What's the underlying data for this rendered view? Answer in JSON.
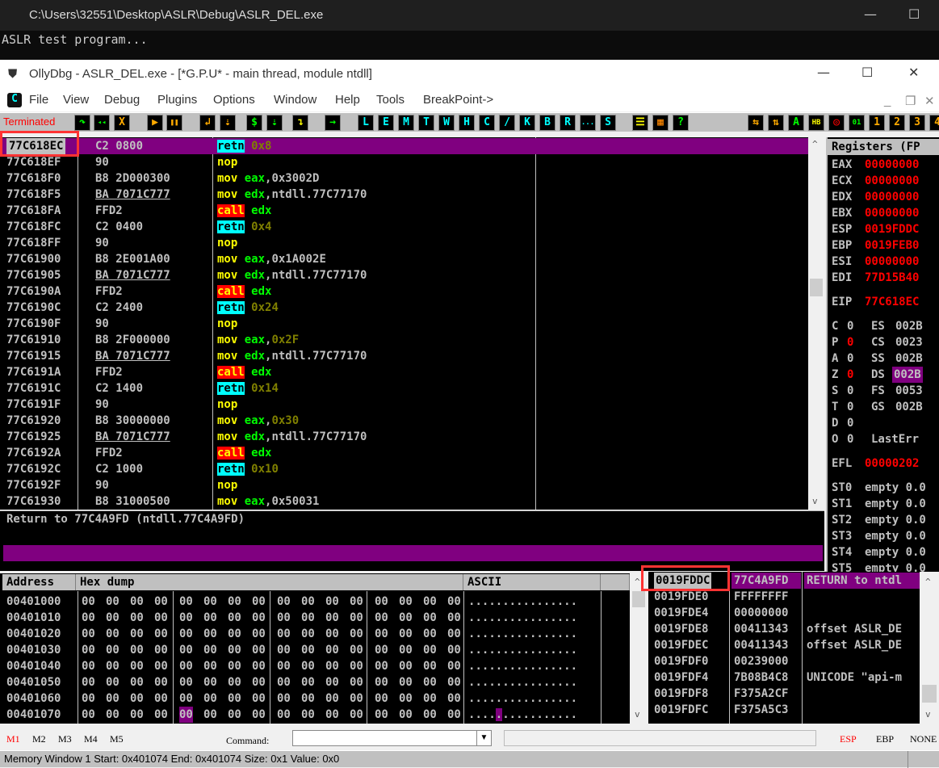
{
  "console": {
    "title": "C:\\Users\\32551\\Desktop\\ASLR\\Debug\\ASLR_DEL.exe",
    "output": "ASLR test program..."
  },
  "olly": {
    "title": "OllyDbg - ASLR_DEL.exe - [*G.P.U* - main thread, module ntdll]",
    "menu": [
      "File",
      "View",
      "Debug",
      "Plugins",
      "Options",
      "Window",
      "Help",
      "Tools",
      "BreakPoint->"
    ],
    "status": "Terminated",
    "toolbar": [
      {
        "t": "↷",
        "c": "#0f0"
      },
      {
        "t": "◂◂",
        "c": "#0f0"
      },
      {
        "t": "X",
        "c": "#fa0"
      },
      {
        "t": "▶",
        "c": "#fa0"
      },
      {
        "t": "❚❚",
        "c": "#fa0"
      },
      {
        "t": "↲",
        "c": "#fa0"
      },
      {
        "t": "⇣",
        "c": "#fa0"
      },
      {
        "t": "$",
        "c": "#0f0"
      },
      {
        "t": "⇣",
        "c": "#0f0"
      },
      {
        "t": "↴",
        "c": "#ff0"
      },
      {
        "t": "→",
        "c": "#0f0"
      },
      {
        "t": "L",
        "c": "#0ff"
      },
      {
        "t": "E",
        "c": "#0ff"
      },
      {
        "t": "M",
        "c": "#0ff"
      },
      {
        "t": "T",
        "c": "#0ff"
      },
      {
        "t": "W",
        "c": "#0ff"
      },
      {
        "t": "H",
        "c": "#0ff"
      },
      {
        "t": "C",
        "c": "#0ff"
      },
      {
        "t": "/",
        "c": "#0ff"
      },
      {
        "t": "K",
        "c": "#0ff"
      },
      {
        "t": "B",
        "c": "#0ff"
      },
      {
        "t": "R",
        "c": "#0ff"
      },
      {
        "t": "...",
        "c": "#0ff"
      },
      {
        "t": "S",
        "c": "#0ff"
      },
      {
        "t": "☰",
        "c": "#ff0"
      },
      {
        "t": "▦",
        "c": "#f80"
      },
      {
        "t": "?",
        "c": "#0f0"
      },
      {
        "t": "⇆",
        "c": "#fa0"
      },
      {
        "t": "⇅",
        "c": "#fa0"
      },
      {
        "t": "A",
        "c": "#0f0"
      },
      {
        "t": "HB",
        "c": "#ff0"
      },
      {
        "t": "◎",
        "c": "#f00"
      },
      {
        "t": "01",
        "c": "#0f0"
      },
      {
        "t": "1",
        "c": "#fa0"
      },
      {
        "t": "2",
        "c": "#fa0"
      },
      {
        "t": "3",
        "c": "#fa0"
      },
      {
        "t": "4",
        "c": "#fa0"
      }
    ]
  },
  "disasm": {
    "rows": [
      {
        "a": "77C618EC",
        "h": "C2 0800",
        "m": "retn",
        "o": "0x8",
        "k": "ret",
        "oc": "o",
        "sel": true
      },
      {
        "a": "77C618EF",
        "h": "90",
        "m": "nop",
        "o": "",
        "k": "nop"
      },
      {
        "a": "77C618F0",
        "h": "B8 2D000300",
        "m": "mov",
        "o": "eax,0x3002D",
        "k": "mov",
        "imm": "w"
      },
      {
        "a": "77C618F5",
        "h": "BA 7071C777",
        "m": "mov",
        "o": "edx,ntdll.77C77170",
        "k": "mov",
        "imm": "w",
        "u": true
      },
      {
        "a": "77C618FA",
        "h": "FFD2",
        "m": "call",
        "o": "edx",
        "k": "call"
      },
      {
        "a": "77C618FC",
        "h": "C2 0400",
        "m": "retn",
        "o": "0x4",
        "k": "ret",
        "oc": "o"
      },
      {
        "a": "77C618FF",
        "h": "90",
        "m": "nop",
        "o": "",
        "k": "nop"
      },
      {
        "a": "77C61900",
        "h": "B8 2E001A00",
        "m": "mov",
        "o": "eax,0x1A002E",
        "k": "mov",
        "imm": "w"
      },
      {
        "a": "77C61905",
        "h": "BA 7071C777",
        "m": "mov",
        "o": "edx,ntdll.77C77170",
        "k": "mov",
        "imm": "w",
        "u": true
      },
      {
        "a": "77C6190A",
        "h": "FFD2",
        "m": "call",
        "o": "edx",
        "k": "call"
      },
      {
        "a": "77C6190C",
        "h": "C2 2400",
        "m": "retn",
        "o": "0x24",
        "k": "ret",
        "oc": "o"
      },
      {
        "a": "77C6190F",
        "h": "90",
        "m": "nop",
        "o": "",
        "k": "nop"
      },
      {
        "a": "77C61910",
        "h": "B8 2F000000",
        "m": "mov",
        "o": "eax,0x2F",
        "k": "mov",
        "imm": "o"
      },
      {
        "a": "77C61915",
        "h": "BA 7071C777",
        "m": "mov",
        "o": "edx,ntdll.77C77170",
        "k": "mov",
        "imm": "w",
        "u": true
      },
      {
        "a": "77C6191A",
        "h": "FFD2",
        "m": "call",
        "o": "edx",
        "k": "call"
      },
      {
        "a": "77C6191C",
        "h": "C2 1400",
        "m": "retn",
        "o": "0x14",
        "k": "ret",
        "oc": "o"
      },
      {
        "a": "77C6191F",
        "h": "90",
        "m": "nop",
        "o": "",
        "k": "nop"
      },
      {
        "a": "77C61920",
        "h": "B8 30000000",
        "m": "mov",
        "o": "eax,0x30",
        "k": "mov",
        "imm": "o"
      },
      {
        "a": "77C61925",
        "h": "BA 7071C777",
        "m": "mov",
        "o": "edx,ntdll.77C77170",
        "k": "mov",
        "imm": "w",
        "u": true
      },
      {
        "a": "77C6192A",
        "h": "FFD2",
        "m": "call",
        "o": "edx",
        "k": "call"
      },
      {
        "a": "77C6192C",
        "h": "C2 1000",
        "m": "retn",
        "o": "0x10",
        "k": "ret",
        "oc": "o"
      },
      {
        "a": "77C6192F",
        "h": "90",
        "m": "nop",
        "o": "",
        "k": "nop"
      },
      {
        "a": "77C61930",
        "h": "B8 31000500",
        "m": "mov",
        "o": "eax,0x50031",
        "k": "mov",
        "imm": "w"
      }
    ]
  },
  "info": {
    "text": "Return to 77C4A9FD (ntdll.77C4A9FD)"
  },
  "registers": {
    "title": "Registers (FP",
    "gp": [
      [
        "EAX",
        "00000000"
      ],
      [
        "ECX",
        "00000000"
      ],
      [
        "EDX",
        "00000000"
      ],
      [
        "EBX",
        "00000000"
      ],
      [
        "ESP",
        "0019FDDC"
      ],
      [
        "EBP",
        "0019FEB0"
      ],
      [
        "ESI",
        "00000000"
      ],
      [
        "EDI",
        "77D15B40"
      ]
    ],
    "eip": [
      "EIP",
      "77C618EC"
    ],
    "flags": [
      [
        "C",
        "0",
        false,
        "ES",
        "002B"
      ],
      [
        "P",
        "0",
        true,
        "CS",
        "0023"
      ],
      [
        "A",
        "0",
        false,
        "SS",
        "002B"
      ],
      [
        "Z",
        "0",
        true,
        "DS",
        "002B"
      ],
      [
        "S",
        "0",
        false,
        "FS",
        "0053"
      ],
      [
        "T",
        "0",
        false,
        "GS",
        "002B"
      ],
      [
        "D",
        "0",
        false,
        "",
        ""
      ],
      [
        "O",
        "0",
        false,
        "LastErr",
        ""
      ]
    ],
    "efl": [
      "EFL",
      "00000202"
    ],
    "fpu": [
      [
        "ST0",
        "empty 0.0"
      ],
      [
        "ST1",
        "empty 0.0"
      ],
      [
        "ST2",
        "empty 0.0"
      ],
      [
        "ST3",
        "empty 0.0"
      ],
      [
        "ST4",
        "empty 0.0"
      ],
      [
        "ST5",
        "empty 0.0"
      ]
    ]
  },
  "dump": {
    "headers": [
      "Address",
      "Hex dump",
      "ASCII"
    ],
    "rows": [
      {
        "a": "00401000",
        "h": "00 00 00 00 00 00 00 00 00 00 00 00 00 00 00 00",
        "s": "................"
      },
      {
        "a": "00401010",
        "h": "00 00 00 00 00 00 00 00 00 00 00 00 00 00 00 00",
        "s": "................"
      },
      {
        "a": "00401020",
        "h": "00 00 00 00 00 00 00 00 00 00 00 00 00 00 00 00",
        "s": "................"
      },
      {
        "a": "00401030",
        "h": "00 00 00 00 00 00 00 00 00 00 00 00 00 00 00 00",
        "s": "................"
      },
      {
        "a": "00401040",
        "h": "00 00 00 00 00 00 00 00 00 00 00 00 00 00 00 00",
        "s": "................"
      },
      {
        "a": "00401050",
        "h": "00 00 00 00 00 00 00 00 00 00 00 00 00 00 00 00",
        "s": "................"
      },
      {
        "a": "00401060",
        "h": "00 00 00 00 00 00 00 00 00 00 00 00 00 00 00 00",
        "s": "................"
      },
      {
        "a": "00401070",
        "h": "00 00 00 00 00 00 00 00 00 00 00 00 00 00 00 00",
        "s": "................",
        "selByte": 4
      }
    ]
  },
  "stack": {
    "rows": [
      {
        "a": "0019FDDC",
        "v": "77C4A9FD",
        "c": "RETURN to ntdl",
        "sel": true
      },
      {
        "a": "0019FDE0",
        "v": "FFFFFFFF",
        "c": ""
      },
      {
        "a": "0019FDE4",
        "v": "00000000",
        "c": ""
      },
      {
        "a": "0019FDE8",
        "v": "00411343",
        "c": "offset ASLR_DE"
      },
      {
        "a": "0019FDEC",
        "v": "00411343",
        "c": "offset ASLR_DE"
      },
      {
        "a": "0019FDF0",
        "v": "00239000",
        "c": ""
      },
      {
        "a": "0019FDF4",
        "v": "7B08B4C8",
        "c": "UNICODE \"api-m"
      },
      {
        "a": "0019FDF8",
        "v": "F375A2CF",
        "c": ""
      },
      {
        "a": "0019FDFC",
        "v": "F375A5C3",
        "c": ""
      }
    ]
  },
  "bottom": {
    "marks": [
      "M1",
      "M2",
      "M3",
      "M4",
      "M5"
    ],
    "command_label": "Command:",
    "command_value": "",
    "regs": [
      "ESP",
      "EBP",
      "NONE"
    ]
  },
  "statusbar": {
    "text": "Memory Window 1  Start:  0x401074  End:  0x401074  Size:  0x1 Value:  0x0"
  },
  "colors": {
    "selection": "#800080",
    "highlight_box": "#ff3333",
    "register_changed": "#ff0000"
  }
}
